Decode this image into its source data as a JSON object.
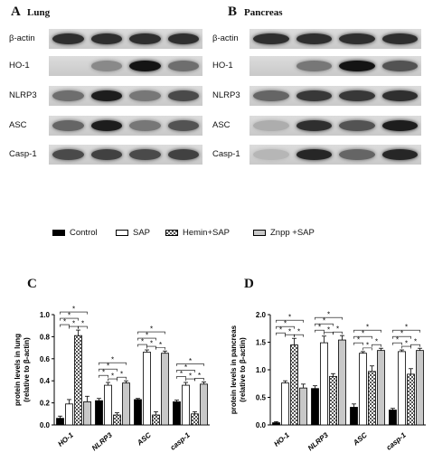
{
  "panels": {
    "a": {
      "letter": "A",
      "title": "Lung"
    },
    "b": {
      "letter": "B",
      "title": "Pancreas"
    },
    "c": {
      "letter": "C"
    },
    "d": {
      "letter": "D"
    }
  },
  "blots": {
    "rows": [
      "β-actin",
      "HO-1",
      "NLRP3",
      "ASC",
      "Casp-1"
    ],
    "lung_intensity": [
      [
        0.85,
        0.85,
        0.85,
        0.85
      ],
      [
        0.0,
        0.35,
        1.0,
        0.5
      ],
      [
        0.5,
        0.95,
        0.45,
        0.7
      ],
      [
        0.55,
        0.95,
        0.45,
        0.65
      ],
      [
        0.7,
        0.75,
        0.7,
        0.75
      ]
    ],
    "pancreas_intensity": [
      [
        0.85,
        0.85,
        0.85,
        0.85
      ],
      [
        0.0,
        0.45,
        1.0,
        0.65
      ],
      [
        0.55,
        0.8,
        0.8,
        0.85
      ],
      [
        0.15,
        0.85,
        0.65,
        0.95
      ],
      [
        0.1,
        0.9,
        0.55,
        0.9
      ]
    ]
  },
  "legend": [
    {
      "label": "Control",
      "pattern": "solid-black"
    },
    {
      "label": "SAP",
      "pattern": "white"
    },
    {
      "label": "Hemin+SAP",
      "pattern": "checker"
    },
    {
      "label": "Znpp +SAP",
      "pattern": "light-gray"
    }
  ],
  "chart_data": [
    {
      "type": "bar",
      "panel": "C",
      "categories": [
        "HO-1",
        "NLRP3",
        "ASC",
        "casp-1"
      ],
      "ylabel": "protein levels in lung\n(relative to β-actin)",
      "ylim": [
        0,
        1.0
      ],
      "yticks": [
        "0.0",
        "0.2",
        "0.4",
        "0.6",
        "0.8",
        "1.0"
      ],
      "series": [
        {
          "name": "Control",
          "values": [
            0.06,
            0.22,
            0.23,
            0.21
          ],
          "errors": [
            0.02,
            0.02,
            0.01,
            0.015
          ]
        },
        {
          "name": "SAP",
          "values": [
            0.19,
            0.36,
            0.66,
            0.36
          ],
          "errors": [
            0.04,
            0.025,
            0.02,
            0.025
          ]
        },
        {
          "name": "Hemin+SAP",
          "values": [
            0.81,
            0.09,
            0.09,
            0.1
          ],
          "errors": [
            0.05,
            0.02,
            0.03,
            0.02
          ]
        },
        {
          "name": "Znpp +SAP",
          "values": [
            0.21,
            0.38,
            0.65,
            0.37
          ],
          "errors": [
            0.05,
            0.02,
            0.02,
            0.02
          ]
        }
      ],
      "significance": "*"
    },
    {
      "type": "bar",
      "panel": "D",
      "categories": [
        "HO-1",
        "NLRP3",
        "ASC",
        "casp-1"
      ],
      "ylabel": "protein levels in pancreas\n(relative to β-actin)",
      "ylim": [
        0,
        2.0
      ],
      "yticks": [
        "0.0",
        "0.5",
        "1.0",
        "1.5",
        "2.0"
      ],
      "series": [
        {
          "name": "Control",
          "values": [
            0.04,
            0.66,
            0.32,
            0.27
          ],
          "errors": [
            0.02,
            0.05,
            0.06,
            0.03
          ]
        },
        {
          "name": "SAP",
          "values": [
            0.76,
            1.49,
            1.3,
            1.33
          ],
          "errors": [
            0.04,
            0.12,
            0.03,
            0.03
          ]
        },
        {
          "name": "Hemin+SAP",
          "values": [
            1.45,
            0.88,
            0.97,
            0.92
          ],
          "errors": [
            0.12,
            0.05,
            0.1,
            0.1
          ]
        },
        {
          "name": "Znpp +SAP",
          "values": [
            0.67,
            1.54,
            1.35,
            1.35
          ],
          "errors": [
            0.07,
            0.08,
            0.04,
            0.04
          ]
        }
      ],
      "significance": "*"
    }
  ]
}
